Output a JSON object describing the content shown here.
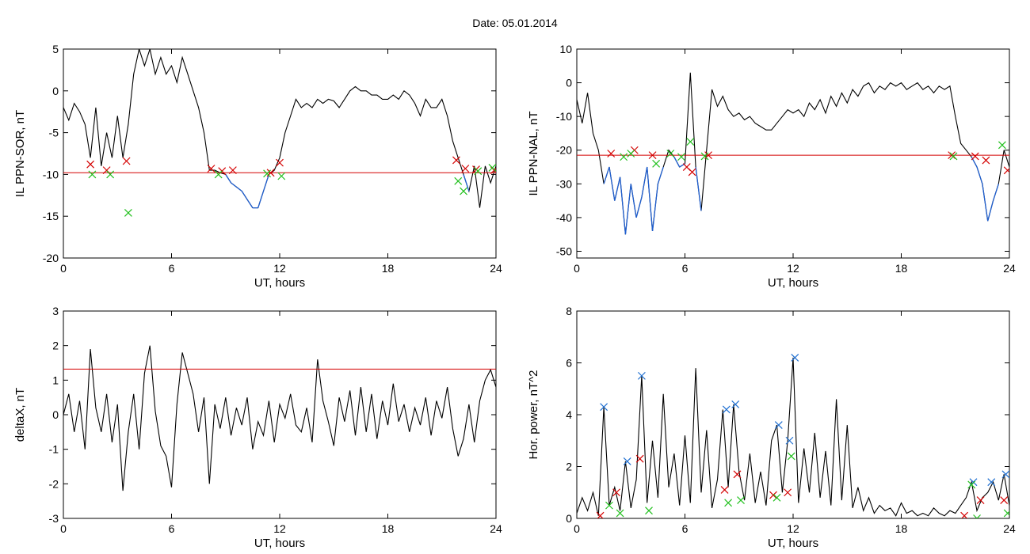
{
  "figure": {
    "title": "Date:  05.01.2014"
  },
  "chart_data": [
    {
      "id": "ppn-sor",
      "type": "line",
      "xlabel": "UT, hours",
      "ylabel": "IL PPN-SOR, nT",
      "xlim": [
        0,
        24
      ],
      "ylim": [
        -20,
        5
      ],
      "xticks": [
        "0",
        "6",
        "12",
        "18",
        "24"
      ],
      "yticks": [
        "5",
        "0",
        "-5",
        "-10",
        "-15",
        "-20"
      ],
      "threshold": {
        "value": -9.8,
        "color": "#d40000"
      },
      "series": [
        {
          "color": "#000000",
          "x": [
            0,
            0.3,
            0.6,
            0.9,
            1.2,
            1.5,
            1.8,
            2.1,
            2.4,
            2.7,
            3.0,
            3.3,
            3.6,
            3.9,
            4.2,
            4.5,
            4.8,
            5.1,
            5.4,
            5.7,
            6.0,
            6.3,
            6.6,
            6.9,
            7.2,
            7.5,
            7.8,
            8.1,
            8.4,
            8.7,
            9.0,
            9.3,
            9.6,
            9.9,
            10.2,
            10.5,
            10.8,
            11.1,
            11.4,
            11.7,
            12.0,
            12.3,
            12.6,
            12.9,
            13.2,
            13.5,
            13.8,
            14.1,
            14.4,
            14.7,
            15.0,
            15.3,
            15.6,
            15.9,
            16.2,
            16.5,
            16.8,
            17.1,
            17.4,
            17.7,
            18.0,
            18.3,
            18.6,
            18.9,
            19.2,
            19.5,
            19.8,
            20.1,
            20.4,
            20.7,
            21.0,
            21.3,
            21.6,
            21.9,
            22.2,
            22.5,
            22.8,
            23.1,
            23.4,
            23.7,
            24.0
          ],
          "y": [
            -2,
            -3.5,
            -1.5,
            -2.5,
            -4,
            -8,
            -2,
            -9,
            -5,
            -8,
            -3,
            -8,
            -4,
            2,
            5,
            3,
            5,
            2,
            4,
            2,
            3,
            1,
            4,
            2,
            0,
            -2,
            -5,
            -9.5,
            -9.5,
            -9.8,
            -10,
            -11,
            -11.5,
            -12,
            -13,
            -14,
            -14,
            -12,
            -10,
            -9.5,
            -8,
            -5,
            -3,
            -1,
            -2,
            -1.5,
            -2,
            -1,
            -1.5,
            -1,
            -1.2,
            -2,
            -1,
            0,
            0.5,
            0,
            0,
            -0.5,
            -0.5,
            -1,
            -1,
            -0.5,
            -1,
            0,
            -0.5,
            -1.5,
            -3,
            -1,
            -2,
            -2,
            -1,
            -3,
            -6,
            -8,
            -10,
            -12,
            -9,
            -14,
            -9,
            -11,
            -9
          ]
        }
      ],
      "markers": [
        {
          "color": "#d40000",
          "x": [
            1.5,
            2.4,
            3.5,
            8.2,
            8.8,
            9.4,
            11.5,
            12.0,
            21.8,
            22.3,
            22.9,
            23.9
          ],
          "y": [
            -8.8,
            -9.5,
            -8.4,
            -9.3,
            -9.6,
            -9.5,
            -9.8,
            -8.6,
            -8.3,
            -9.3,
            -9.4,
            -9.5
          ]
        },
        {
          "color": "#22c01e",
          "x": [
            1.6,
            2.6,
            3.6,
            8.6,
            11.3,
            12.1,
            21.9,
            22.2,
            23.0,
            23.8
          ],
          "y": [
            -10.0,
            -10.0,
            -14.6,
            -10.0,
            -9.9,
            -10.2,
            -10.8,
            -12.0,
            -9.6,
            -9.2
          ]
        }
      ]
    },
    {
      "id": "ppn-nal",
      "type": "line",
      "xlabel": "UT, hours",
      "ylabel": "IL PPN-NAL, nT",
      "xlim": [
        0,
        24
      ],
      "ylim": [
        -52,
        10
      ],
      "xticks": [
        "0",
        "6",
        "12",
        "18",
        "24"
      ],
      "yticks": [
        "10",
        "0",
        "-10",
        "-20",
        "-30",
        "-40",
        "-50"
      ],
      "threshold": {
        "value": -21.5,
        "color": "#d40000"
      },
      "series": [
        {
          "color": "#000000",
          "x": [
            0,
            0.3,
            0.6,
            0.9,
            1.2,
            1.5,
            1.8,
            2.1,
            2.4,
            2.7,
            3.0,
            3.3,
            3.6,
            3.9,
            4.2,
            4.5,
            4.8,
            5.1,
            5.4,
            5.7,
            6.0,
            6.3,
            6.6,
            6.9,
            7.2,
            7.5,
            7.8,
            8.1,
            8.4,
            8.7,
            9.0,
            9.3,
            9.6,
            9.9,
            10.2,
            10.5,
            10.8,
            11.1,
            11.4,
            11.7,
            12.0,
            12.3,
            12.6,
            12.9,
            13.2,
            13.5,
            13.8,
            14.1,
            14.4,
            14.7,
            15.0,
            15.3,
            15.6,
            15.9,
            16.2,
            16.5,
            16.8,
            17.1,
            17.4,
            17.7,
            18.0,
            18.3,
            18.6,
            18.9,
            19.2,
            19.5,
            19.8,
            20.1,
            20.4,
            20.7,
            21.0,
            21.3,
            21.6,
            21.9,
            22.2,
            22.5,
            22.8,
            23.1,
            23.4,
            23.7,
            24.0
          ],
          "y": [
            -5,
            -12,
            -3,
            -15,
            -20,
            -30,
            -25,
            -35,
            -28,
            -45,
            -30,
            -40,
            -34,
            -25,
            -44,
            -30,
            -25,
            -20,
            -22,
            -25,
            -24,
            3,
            -25,
            -38,
            -20,
            -2,
            -7,
            -4,
            -8,
            -10,
            -9,
            -11,
            -10,
            -12,
            -13,
            -14,
            -14,
            -12,
            -10,
            -8,
            -9,
            -8,
            -10,
            -6,
            -8,
            -5,
            -9,
            -4,
            -7,
            -3,
            -6,
            -2,
            -4,
            -1,
            0,
            -3,
            -1,
            -2,
            0,
            -1,
            0,
            -2,
            -1,
            0,
            -2,
            -1,
            -3,
            -1,
            -2,
            -1,
            -10,
            -18,
            -20,
            -22,
            -25,
            -30,
            -41,
            -35,
            -30,
            -20,
            -25
          ]
        }
      ],
      "markers": [
        {
          "color": "#d40000",
          "x": [
            1.9,
            3.2,
            4.2,
            6.1,
            6.4,
            7.3,
            20.8,
            22.1,
            22.7,
            23.9
          ],
          "y": [
            -21.0,
            -20.0,
            -21.5,
            -25.0,
            -26.5,
            -21.5,
            -21.5,
            -21.8,
            -23.0,
            -26.0
          ]
        },
        {
          "color": "#22c01e",
          "x": [
            2.6,
            3.0,
            4.4,
            5.2,
            5.8,
            6.3,
            7.1,
            20.9,
            23.6
          ],
          "y": [
            -22.0,
            -21.0,
            -24.0,
            -21.0,
            -22.0,
            -17.5,
            -21.8,
            -21.8,
            -18.5
          ]
        }
      ]
    },
    {
      "id": "deltax",
      "type": "line",
      "xlabel": "UT, hours",
      "ylabel": "deltaX, nT",
      "xlim": [
        0,
        24
      ],
      "ylim": [
        -3,
        3
      ],
      "xticks": [
        "0",
        "6",
        "12",
        "18",
        "24"
      ],
      "yticks": [
        "3",
        "2",
        "1",
        "0",
        "-1",
        "-2",
        "-3"
      ],
      "threshold": {
        "value": 1.32,
        "color": "#d40000"
      },
      "series": [
        {
          "color": "#000000",
          "x": [
            0,
            0.3,
            0.6,
            0.9,
            1.2,
            1.5,
            1.8,
            2.1,
            2.4,
            2.7,
            3.0,
            3.3,
            3.6,
            3.9,
            4.2,
            4.5,
            4.8,
            5.1,
            5.4,
            5.7,
            6.0,
            6.3,
            6.6,
            6.9,
            7.2,
            7.5,
            7.8,
            8.1,
            8.4,
            8.7,
            9.0,
            9.3,
            9.6,
            9.9,
            10.2,
            10.5,
            10.8,
            11.1,
            11.4,
            11.7,
            12.0,
            12.3,
            12.6,
            12.9,
            13.2,
            13.5,
            13.8,
            14.1,
            14.4,
            14.7,
            15.0,
            15.3,
            15.6,
            15.9,
            16.2,
            16.5,
            16.8,
            17.1,
            17.4,
            17.7,
            18.0,
            18.3,
            18.6,
            18.9,
            19.2,
            19.5,
            19.8,
            20.1,
            20.4,
            20.7,
            21.0,
            21.3,
            21.6,
            21.9,
            22.2,
            22.5,
            22.8,
            23.1,
            23.4,
            23.7,
            24.0
          ],
          "y": [
            0,
            0.6,
            -0.5,
            0.4,
            -1.0,
            1.9,
            0.2,
            -0.5,
            0.6,
            -0.8,
            0.3,
            -2.2,
            -0.5,
            0.6,
            -1.0,
            1.2,
            2.0,
            0.1,
            -0.9,
            -1.2,
            -2.1,
            0.3,
            1.8,
            1.2,
            0.6,
            -0.5,
            0.5,
            -2.0,
            0.3,
            -0.4,
            0.5,
            -0.6,
            0.2,
            -0.3,
            0.5,
            -1.0,
            -0.2,
            -0.6,
            0.4,
            -0.8,
            0.3,
            -0.1,
            0.6,
            -0.3,
            -0.5,
            0.2,
            -0.8,
            1.6,
            0.4,
            -0.2,
            -0.9,
            0.5,
            -0.2,
            0.7,
            -0.6,
            0.8,
            -0.5,
            0.6,
            -0.7,
            0.4,
            -0.3,
            0.9,
            -0.2,
            0.3,
            -0.5,
            0.2,
            -0.3,
            0.5,
            -0.6,
            0.4,
            -0.1,
            0.8,
            -0.4,
            -1.2,
            -0.7,
            0.3,
            -0.8,
            0.4,
            1.0,
            1.3,
            0.8
          ]
        }
      ],
      "markers": []
    },
    {
      "id": "hor-power",
      "type": "line",
      "xlabel": "UT, hours",
      "ylabel": "Hor. power, nT^2",
      "xlim": [
        0,
        24
      ],
      "ylim": [
        0,
        8
      ],
      "xticks": [
        "0",
        "6",
        "12",
        "18",
        "24"
      ],
      "yticks": [
        "8",
        "6",
        "4",
        "2",
        "0"
      ],
      "threshold": null,
      "series": [
        {
          "color": "#000000",
          "x": [
            0,
            0.3,
            0.6,
            0.9,
            1.2,
            1.5,
            1.8,
            2.1,
            2.4,
            2.7,
            3.0,
            3.3,
            3.6,
            3.9,
            4.2,
            4.5,
            4.8,
            5.1,
            5.4,
            5.7,
            6.0,
            6.3,
            6.6,
            6.9,
            7.2,
            7.5,
            7.8,
            8.1,
            8.4,
            8.7,
            9.0,
            9.3,
            9.6,
            9.9,
            10.2,
            10.5,
            10.8,
            11.1,
            11.4,
            11.7,
            12.0,
            12.3,
            12.6,
            12.9,
            13.2,
            13.5,
            13.8,
            14.1,
            14.4,
            14.7,
            15.0,
            15.3,
            15.6,
            15.9,
            16.2,
            16.5,
            16.8,
            17.1,
            17.4,
            17.7,
            18.0,
            18.3,
            18.6,
            18.9,
            19.2,
            19.5,
            19.8,
            20.1,
            20.4,
            20.7,
            21.0,
            21.3,
            21.6,
            21.9,
            22.2,
            22.5,
            22.8,
            23.1,
            23.4,
            23.7,
            24.0
          ],
          "y": [
            0.2,
            0.8,
            0.3,
            1.0,
            0.1,
            4.3,
            0.5,
            1.2,
            0.3,
            2.2,
            0.4,
            1.5,
            5.5,
            0.6,
            3.0,
            0.8,
            4.8,
            1.2,
            2.5,
            0.5,
            3.2,
            0.6,
            5.8,
            1.0,
            3.4,
            0.4,
            1.5,
            4.2,
            1.2,
            4.4,
            1.8,
            0.7,
            2.5,
            0.6,
            1.8,
            0.5,
            3.0,
            3.6,
            1.0,
            3.0,
            6.2,
            0.6,
            2.7,
            1.0,
            3.3,
            0.8,
            2.6,
            0.5,
            4.6,
            0.7,
            3.6,
            0.4,
            1.2,
            0.3,
            0.8,
            0.2,
            0.5,
            0.3,
            0.4,
            0.1,
            0.6,
            0.2,
            0.3,
            0.1,
            0.2,
            0.1,
            0.4,
            0.2,
            0.1,
            0.3,
            0.2,
            0.5,
            0.8,
            1.4,
            0.3,
            0.8,
            1.0,
            1.4,
            0.7,
            1.7,
            0.5
          ]
        }
      ],
      "markers": [
        {
          "color": "#1f6fd1",
          "x": [
            1.5,
            2.8,
            3.6,
            8.3,
            8.8,
            11.2,
            11.8,
            12.1,
            22.0,
            23.0,
            23.8
          ],
          "y": [
            4.3,
            2.2,
            5.5,
            4.2,
            4.4,
            3.6,
            3.0,
            6.2,
            1.4,
            1.4,
            1.7
          ]
        },
        {
          "color": "#d40000",
          "x": [
            1.3,
            2.2,
            3.5,
            8.2,
            8.9,
            10.9,
            11.7,
            21.5,
            22.4,
            23.7
          ],
          "y": [
            0.1,
            1.0,
            2.3,
            1.1,
            1.7,
            0.9,
            1.0,
            0.1,
            0.7,
            0.7
          ]
        },
        {
          "color": "#22c01e",
          "x": [
            1.8,
            2.4,
            4.0,
            8.4,
            9.1,
            11.1,
            11.9,
            21.9,
            22.2,
            23.9
          ],
          "y": [
            0.5,
            0.2,
            0.3,
            0.6,
            0.7,
            0.8,
            2.4,
            1.3,
            0.0,
            0.2
          ]
        }
      ]
    }
  ]
}
